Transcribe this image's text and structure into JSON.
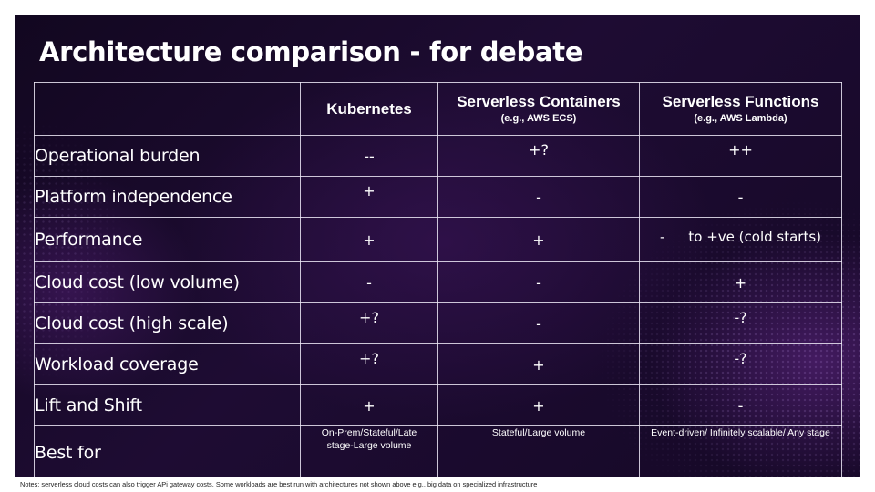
{
  "title": "Architecture comparison - for debate",
  "columns": [
    {
      "name": "Kubernetes",
      "sub": ""
    },
    {
      "name": "Serverless Containers",
      "sub": "(e.g., AWS ECS)"
    },
    {
      "name": "Serverless Functions",
      "sub": "(e.g., AWS Lambda)"
    }
  ],
  "rows": [
    {
      "label": "Operational burden",
      "values": [
        "--",
        "+?",
        "++"
      ]
    },
    {
      "label": "Platform independence",
      "values": [
        "+",
        "-",
        "-"
      ]
    },
    {
      "label": "Performance",
      "values": [
        "+",
        "+",
        ""
      ],
      "serverless_functions_prefix": "-",
      "serverless_functions_text": "to +ve (cold starts)"
    },
    {
      "label": "Cloud cost (low volume)",
      "values": [
        "-",
        "-",
        "+"
      ]
    },
    {
      "label": "Cloud cost (high scale)",
      "values": [
        "+?",
        "-",
        "-?"
      ]
    },
    {
      "label": "Workload coverage",
      "values": [
        "+?",
        "+",
        "-?"
      ]
    },
    {
      "label": "Lift and Shift",
      "values": [
        "+",
        "+",
        "-"
      ]
    },
    {
      "label": "Best for",
      "values": [
        "On-Prem/Stateful/Late stage-Large volume",
        "Stateful/Large volume",
        "Event-driven/ Infinitely scalable/ Any stage"
      ]
    }
  ],
  "notes": "Notes: serverless cloud costs can also trigger APi gateway costs.  Some workloads are best run with architectures not shown above e.g., big data on specialized infrastructure"
}
